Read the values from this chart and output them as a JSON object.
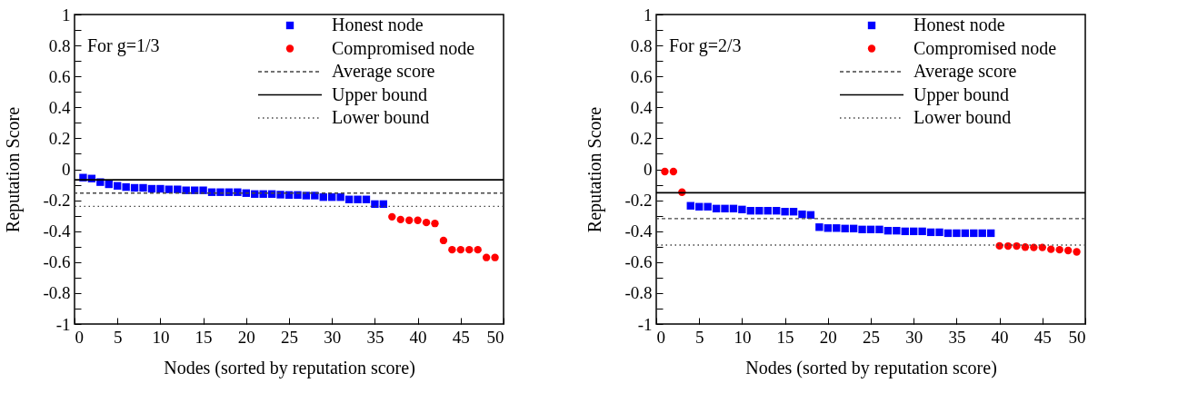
{
  "chart_data": [
    {
      "type": "scatter",
      "xlabel": "Nodes (sorted by reputation score)",
      "ylabel": "Reputation Score",
      "annotations": [
        "For g=1/3"
      ],
      "legend": "top right",
      "grid": false,
      "xlim": [
        0,
        50
      ],
      "xticks": [
        0,
        5,
        10,
        15,
        20,
        25,
        30,
        35,
        40,
        45,
        50
      ],
      "ylim": [
        -1,
        1
      ],
      "yticks": [
        -1,
        {
          "value": -0.9,
          "label": null
        },
        -0.8,
        {
          "value": -0.7,
          "label": null
        },
        -0.6,
        {
          "value": -0.5,
          "label": null
        },
        -0.4,
        {
          "value": -0.3,
          "label": null
        },
        -0.2,
        {
          "value": -0.1,
          "label": null
        },
        0,
        {
          "value": 0.1,
          "label": null
        },
        0.2,
        {
          "value": 0.3,
          "label": null
        },
        0.4,
        {
          "value": 0.5,
          "label": null
        },
        0.6,
        {
          "value": 0.7,
          "label": null
        },
        0.8,
        {
          "value": 0.9,
          "label": null
        },
        1
      ],
      "series": [
        {
          "name": "Honest node",
          "color": "#0000ff",
          "marker": "square",
          "x": [
            1,
            2,
            3,
            4,
            5,
            6,
            7,
            8,
            9,
            10,
            11,
            12,
            13,
            14,
            15,
            16,
            17,
            18,
            19,
            20,
            21,
            22,
            23,
            24,
            25,
            26,
            27,
            28,
            29,
            30,
            31,
            32,
            33,
            34,
            35,
            36
          ],
          "values": [
            -0.054,
            -0.06,
            -0.083,
            -0.097,
            -0.107,
            -0.115,
            -0.12,
            -0.12,
            -0.126,
            -0.126,
            -0.13,
            -0.13,
            -0.136,
            -0.136,
            -0.136,
            -0.148,
            -0.148,
            -0.148,
            -0.148,
            -0.154,
            -0.16,
            -0.16,
            -0.16,
            -0.164,
            -0.166,
            -0.166,
            -0.17,
            -0.17,
            -0.18,
            -0.18,
            -0.18,
            -0.195,
            -0.195,
            -0.195,
            -0.225,
            -0.225
          ]
        },
        {
          "name": "Compromised node",
          "color": "#ff0000",
          "marker": "circle",
          "x": [
            37,
            38,
            39,
            40,
            41,
            42,
            43,
            44,
            45,
            46,
            47,
            48,
            49
          ],
          "values": [
            -0.307,
            -0.325,
            -0.33,
            -0.33,
            -0.344,
            -0.35,
            -0.46,
            -0.52,
            -0.52,
            -0.52,
            -0.52,
            -0.57,
            -0.57
          ]
        }
      ],
      "ref_lines": [
        {
          "axis": "y",
          "value": -0.154,
          "label": "Average score",
          "line_style": "dashed",
          "color": "#444444"
        },
        {
          "axis": "y",
          "value": -0.068,
          "label": "Upper bound",
          "line_style": "solid",
          "color": "#000000"
        },
        {
          "axis": "y",
          "value": -0.24,
          "label": "Lower bound",
          "line_style": "dotted",
          "color": "#444444"
        }
      ]
    },
    {
      "type": "scatter",
      "xlabel": "Nodes (sorted by reputation score)",
      "ylabel": "Reputation Score",
      "annotations": [
        "For g=2/3"
      ],
      "legend": "top right",
      "grid": false,
      "xlim": [
        0,
        50
      ],
      "xticks": [
        0,
        5,
        10,
        15,
        20,
        25,
        30,
        35,
        40,
        45,
        50
      ],
      "ylim": [
        -1,
        1
      ],
      "yticks": [
        -1,
        {
          "value": -0.9,
          "label": null
        },
        -0.8,
        {
          "value": -0.7,
          "label": null
        },
        -0.6,
        {
          "value": -0.5,
          "label": null
        },
        -0.4,
        {
          "value": -0.3,
          "label": null
        },
        -0.2,
        {
          "value": -0.1,
          "label": null
        },
        0,
        {
          "value": 0.1,
          "label": null
        },
        0.2,
        {
          "value": 0.3,
          "label": null
        },
        0.4,
        {
          "value": 0.5,
          "label": null
        },
        0.6,
        {
          "value": 0.7,
          "label": null
        },
        0.8,
        {
          "value": 0.9,
          "label": null
        },
        1
      ],
      "series": [
        {
          "name": "Honest node",
          "color": "#0000ff",
          "marker": "square",
          "x": [
            4,
            5,
            6,
            7,
            8,
            9,
            10,
            11,
            12,
            13,
            14,
            15,
            16,
            17,
            18,
            19,
            20,
            21,
            22,
            23,
            24,
            25,
            26,
            27,
            28,
            29,
            30,
            31,
            32,
            33,
            34,
            35,
            36,
            37,
            38,
            39
          ],
          "values": [
            -0.236,
            -0.242,
            -0.242,
            -0.254,
            -0.254,
            -0.254,
            -0.26,
            -0.268,
            -0.268,
            -0.268,
            -0.268,
            -0.274,
            -0.274,
            -0.291,
            -0.295,
            -0.374,
            -0.38,
            -0.38,
            -0.383,
            -0.383,
            -0.389,
            -0.389,
            -0.389,
            -0.397,
            -0.397,
            -0.401,
            -0.401,
            -0.401,
            -0.407,
            -0.407,
            -0.413,
            -0.413,
            -0.413,
            -0.413,
            -0.413,
            -0.413
          ]
        },
        {
          "name": "Compromised node",
          "color": "#ff0000",
          "marker": "circle",
          "x": [
            1,
            2,
            3,
            40,
            41,
            42,
            43,
            44,
            45,
            46,
            47,
            48,
            49
          ],
          "values": [
            -0.015,
            -0.015,
            -0.148,
            -0.495,
            -0.496,
            -0.496,
            -0.503,
            -0.505,
            -0.505,
            -0.517,
            -0.52,
            -0.525,
            -0.534
          ]
        }
      ],
      "ref_lines": [
        {
          "axis": "y",
          "value": -0.319,
          "label": "Average score",
          "line_style": "dashed",
          "color": "#444444"
        },
        {
          "axis": "y",
          "value": -0.152,
          "label": "Upper bound",
          "line_style": "solid",
          "color": "#000000"
        },
        {
          "axis": "y",
          "value": -0.49,
          "label": "Lower bound",
          "line_style": "dotted",
          "color": "#444444"
        }
      ]
    }
  ]
}
